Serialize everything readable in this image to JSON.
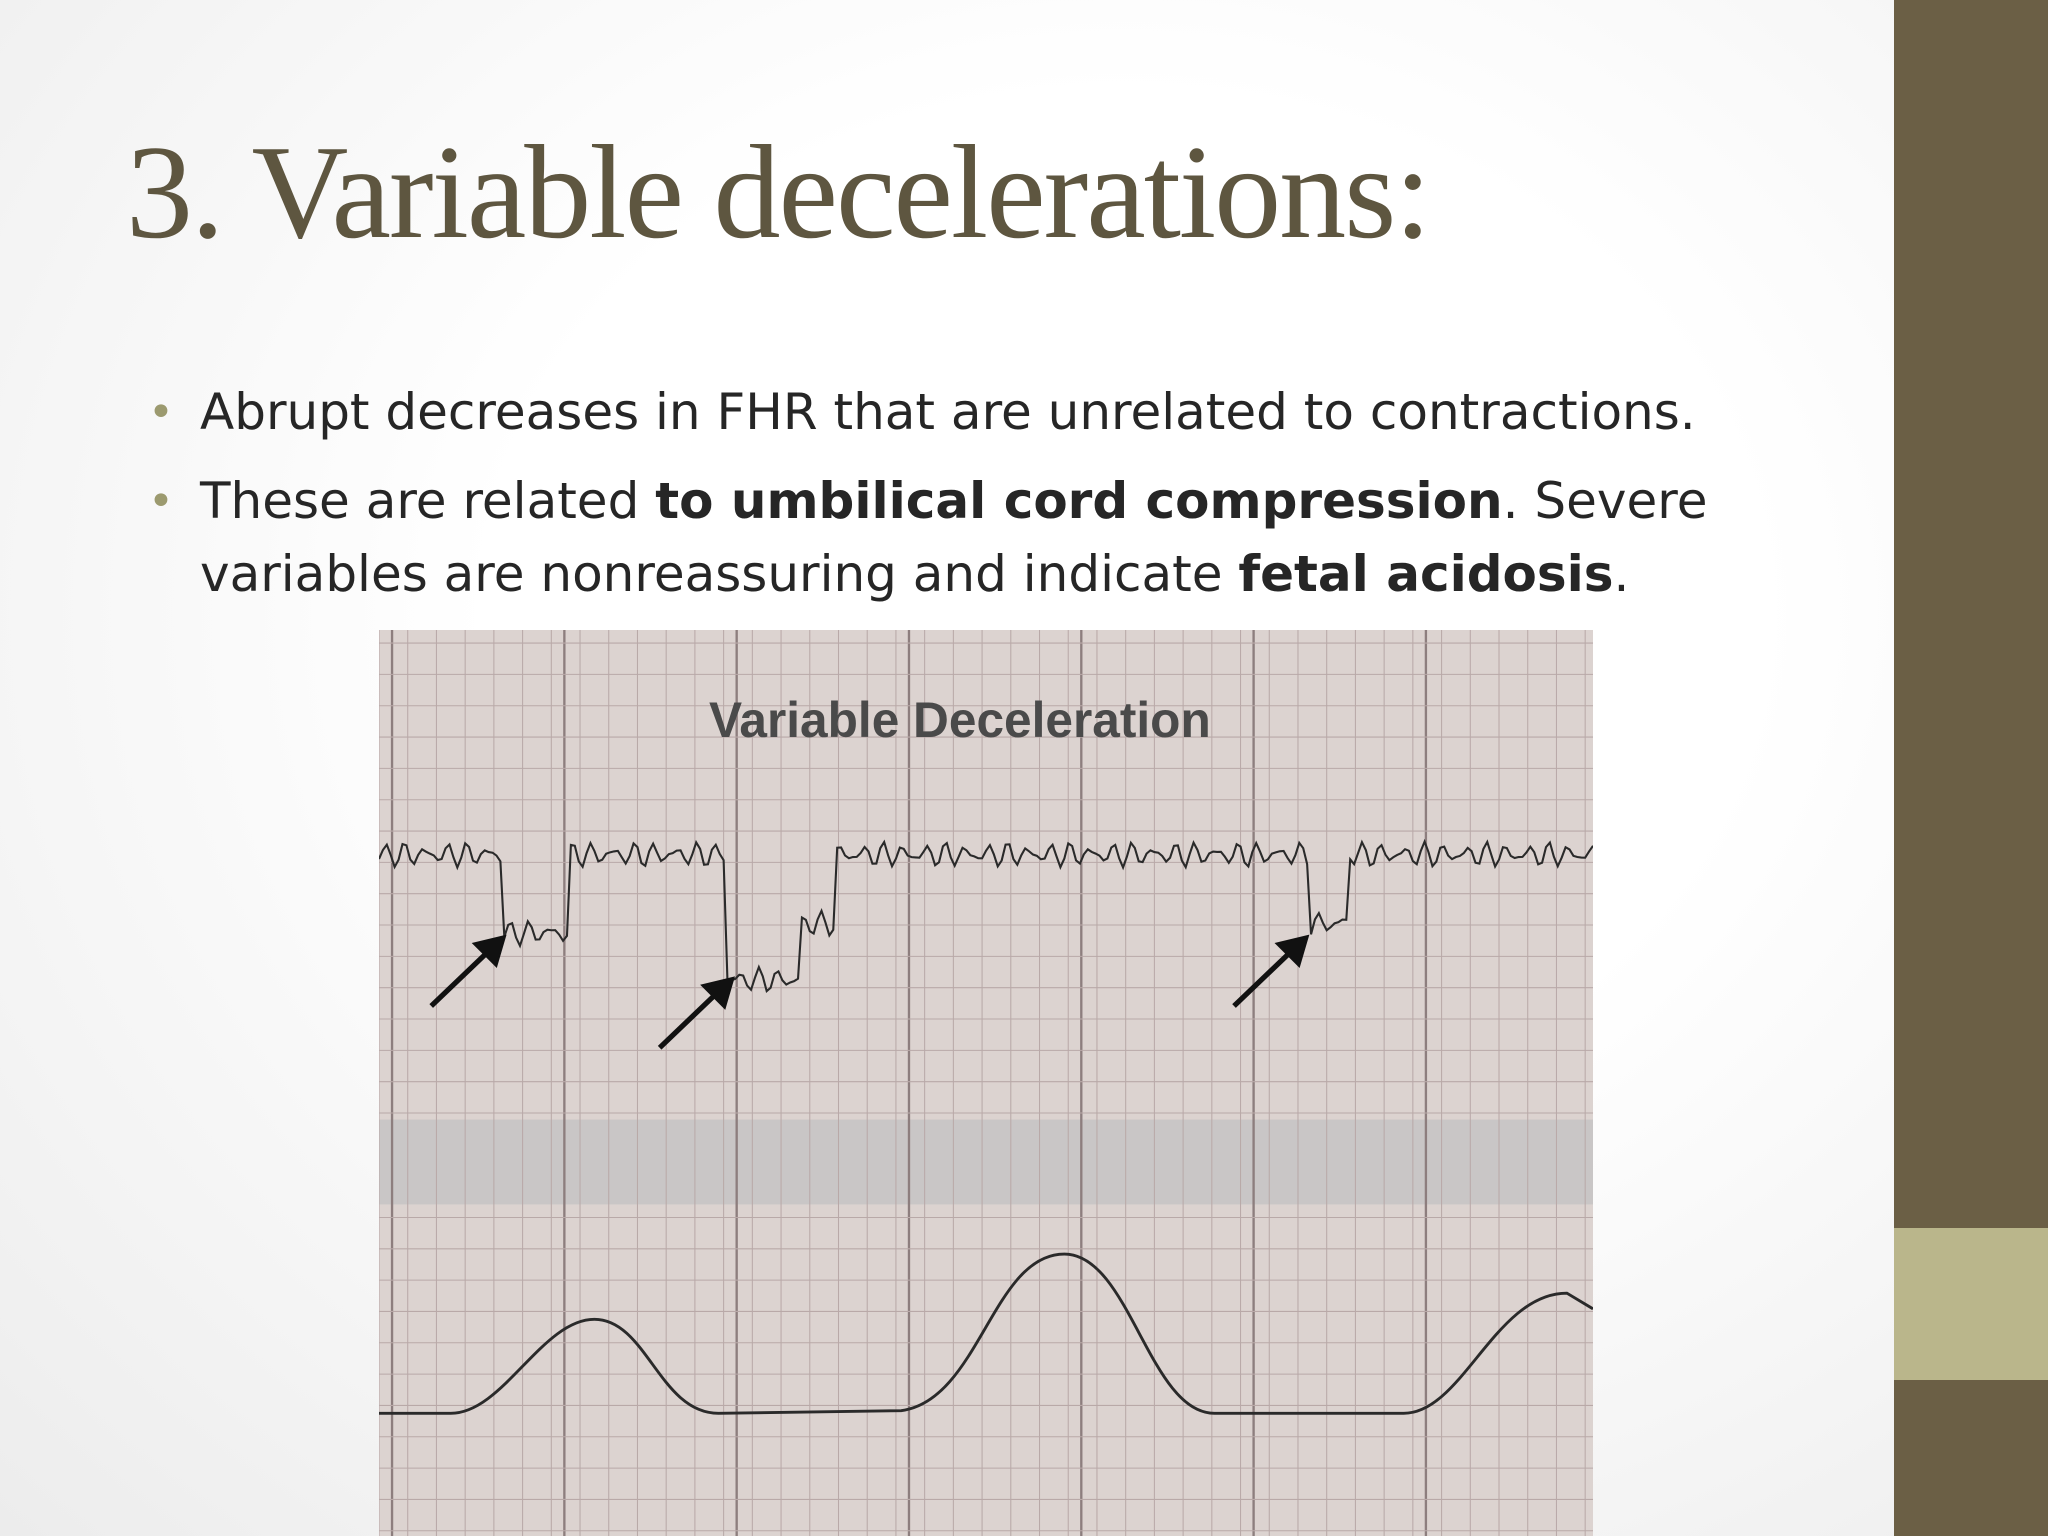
{
  "title": "3. Variable decelerations:",
  "bullets": [
    {
      "segments": [
        {
          "text": "Abrupt decreases in FHR that are unrelated to contractions.",
          "bold": false
        }
      ]
    },
    {
      "segments": [
        {
          "text": "These are related ",
          "bold": false
        },
        {
          "text": "to umbilical cord compression",
          "bold": true
        },
        {
          "text": ". Severe variables are nonreassuring and indicate ",
          "bold": false
        },
        {
          "text": "fetal acidosis",
          "bold": true
        },
        {
          "text": ".",
          "bold": false
        }
      ]
    }
  ],
  "figure": {
    "label": "Variable Deceleration"
  }
}
